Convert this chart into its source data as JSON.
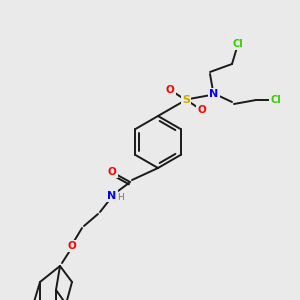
{
  "background_color": "#eaeaea",
  "bond_color": "#1a1a1a",
  "atom_colors": {
    "O": "#ff0000",
    "N": "#0000ff",
    "S": "#ccaa00",
    "Cl": "#33cc00",
    "H": "#777777",
    "C": "#1a1a1a"
  },
  "figsize": [
    3.0,
    3.0
  ],
  "dpi": 100,
  "lw": 1.4
}
